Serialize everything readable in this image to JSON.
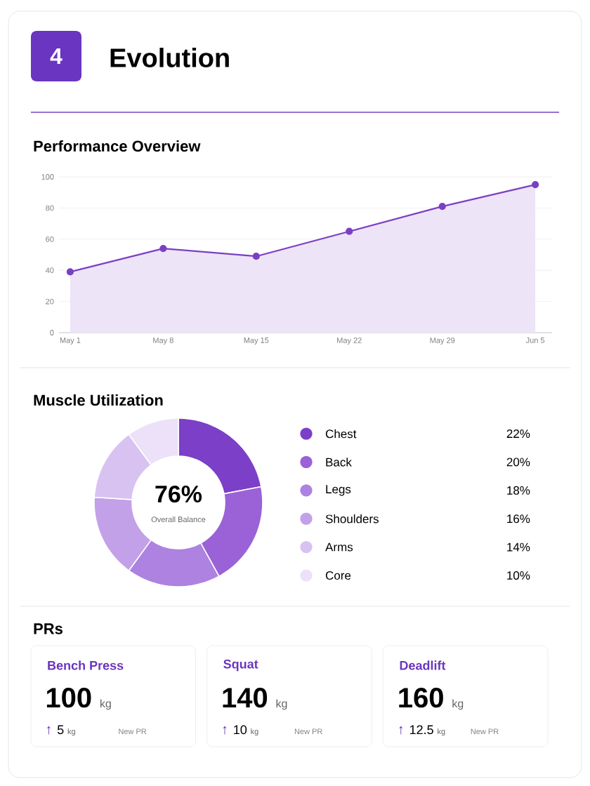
{
  "chart_data": [
    {
      "type": "area",
      "title": "Performance Overview",
      "annotations": [
        "4",
        "Evolution"
      ],
      "categories": [
        "May 1",
        "May 8",
        "May 15",
        "May 22",
        "May 29",
        "Jun 5"
      ],
      "values": [
        39,
        54,
        49,
        65,
        81,
        95
      ],
      "color": "#7b3fc4",
      "ylim": [
        0,
        100
      ],
      "yticks": [
        0,
        20,
        40,
        60,
        80,
        100
      ],
      "grid": "y",
      "marker": "circle"
    },
    {
      "type": "donut",
      "title": "Muscle Utilization",
      "categories": [
        "Chest",
        "Back",
        "Legs",
        "Shoulders",
        "Arms",
        "Core"
      ],
      "values": [
        22,
        20,
        18,
        16,
        14,
        10
      ],
      "value_labels": [
        "22%",
        "20%",
        "18%",
        "16%",
        "14%",
        "10%"
      ],
      "colors": [
        "#7b3fc8",
        "#9a62d6",
        "#ad82e0",
        "#c3a1e8",
        "#d8c2f1",
        "#ece1f8"
      ],
      "legend": "right",
      "annotations": [
        "76%",
        "Overall Balance"
      ]
    },
    {
      "type": "other",
      "title": "PRs",
      "annotations": [
        "Bench Press",
        "100",
        "kg",
        "↑",
        "5",
        "kg",
        "New PR",
        "Squat",
        "140",
        "kg",
        "↑",
        "10",
        "kg",
        "New PR",
        "Deadlift",
        "160",
        "kg",
        "↑",
        "12.5",
        "kg",
        "New PR"
      ]
    }
  ]
}
